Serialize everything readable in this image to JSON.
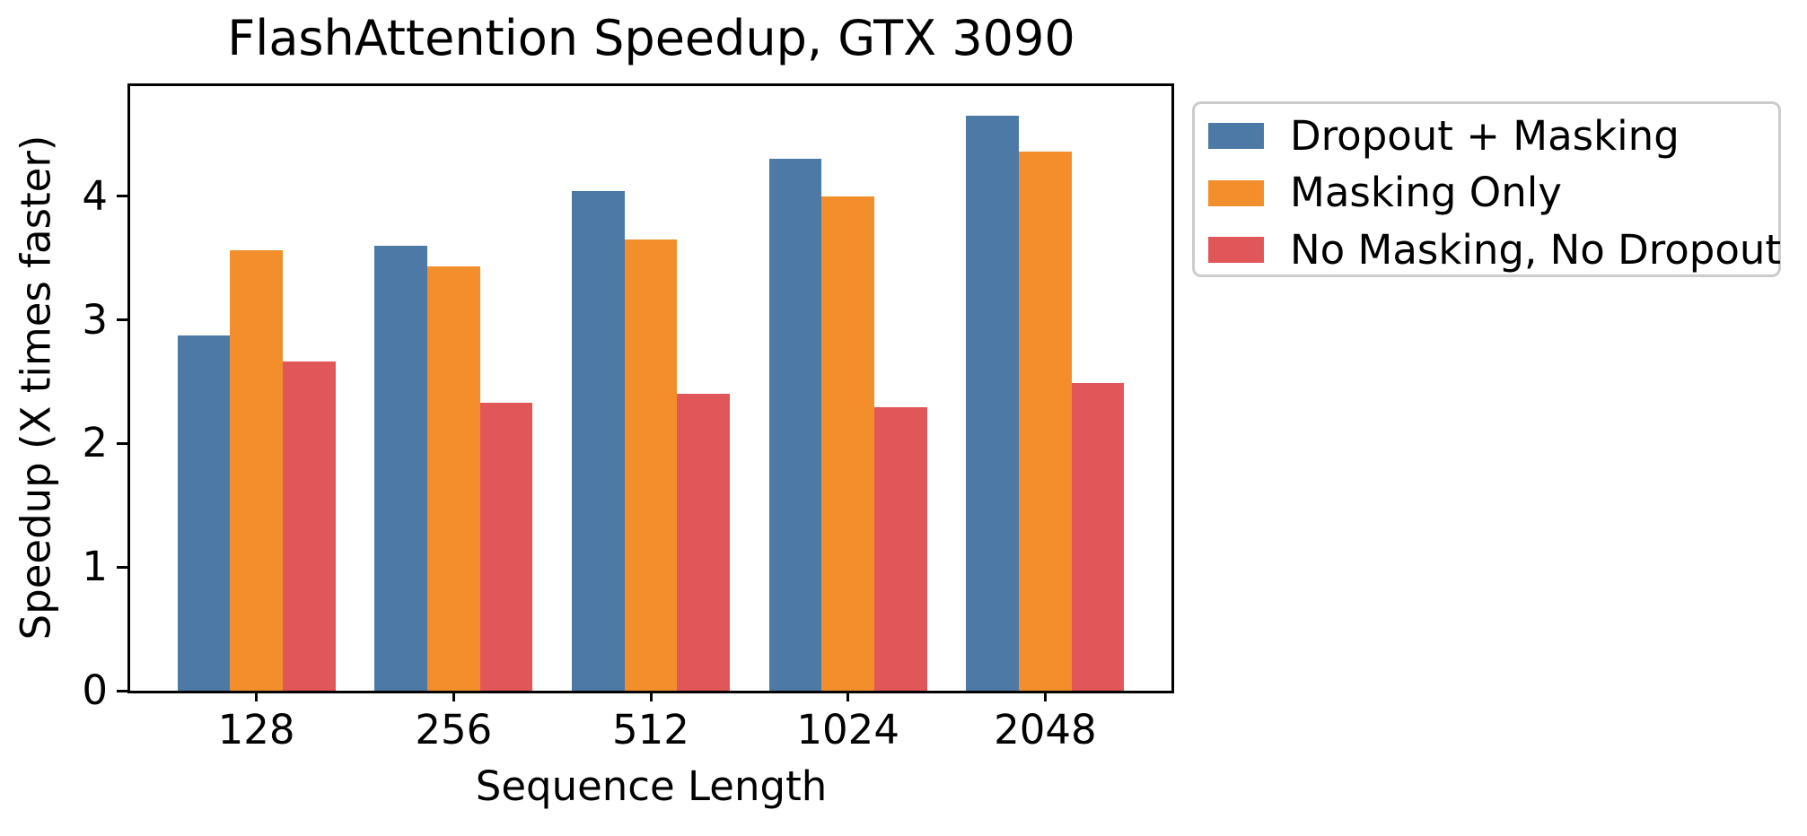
{
  "chart_data": {
    "type": "bar",
    "title": "FlashAttention Speedup, GTX 3090",
    "xlabel": "Sequence Length",
    "ylabel": "Speedup (X times faster)",
    "categories": [
      "128",
      "256",
      "512",
      "1024",
      "2048"
    ],
    "series": [
      {
        "name": "Dropout + Masking",
        "color": "#4d79a7",
        "values": [
          2.87,
          3.6,
          4.04,
          4.3,
          4.65
        ]
      },
      {
        "name": "Masking Only",
        "color": "#f28e2b",
        "values": [
          3.56,
          3.43,
          3.65,
          4.0,
          4.36
        ]
      },
      {
        "name": "No Masking, No Dropout",
        "color": "#e15759",
        "values": [
          2.66,
          2.33,
          2.4,
          2.29,
          2.49
        ]
      }
    ],
    "yticks": [
      "0",
      "1",
      "2",
      "3",
      "4"
    ],
    "ylim": [
      0,
      4.89
    ],
    "xlim": [
      -0.64,
      4.64
    ],
    "bar_width": 0.267,
    "grid": false,
    "legend_position": "outside-right",
    "frame": "full-box",
    "axis_color": "#000000",
    "legend_border_color": "#cccccc"
  }
}
